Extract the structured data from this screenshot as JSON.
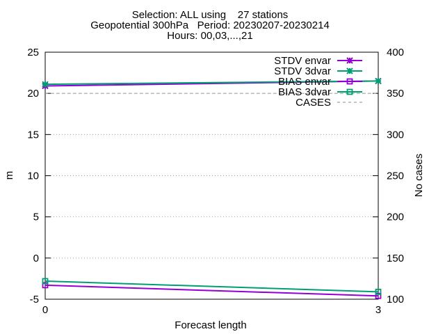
{
  "chart_data": {
    "type": "line",
    "title_lines": [
      "Selection: ALL using    27 stations",
      "Geopotential 300hPa   Period: 20230207-20230214",
      "Hours: 00,03,...,21"
    ],
    "xlabel": "Forecast length",
    "ylabel": "m",
    "y2label": "No cases",
    "xlim": [
      0,
      3
    ],
    "ylim": [
      -5,
      25
    ],
    "y2lim": [
      100,
      400
    ],
    "x_ticks": [
      "0",
      "3"
    ],
    "y_ticks": [
      "-5",
      "0",
      "5",
      "10",
      "15",
      "20",
      "25"
    ],
    "y2_ticks": [
      "100",
      "150",
      "200",
      "250",
      "300",
      "350",
      "400"
    ],
    "grid": "horizontal dotted",
    "legend_position": "top-right",
    "x": [
      0,
      3
    ],
    "series": [
      {
        "name": "STDV envar",
        "axis": "y",
        "values": [
          20.9,
          21.5
        ],
        "color": "#9400d3",
        "marker": "x",
        "dash": false
      },
      {
        "name": "STDV 3dvar",
        "axis": "y",
        "values": [
          21.1,
          21.5
        ],
        "color": "#009e73",
        "marker": "x",
        "dash": false
      },
      {
        "name": "BIAS envar",
        "axis": "y",
        "values": [
          -3.3,
          -4.6
        ],
        "color": "#9400d3",
        "marker": "square",
        "dash": false
      },
      {
        "name": "BIAS 3dvar",
        "axis": "y",
        "values": [
          -2.8,
          -4.1
        ],
        "color": "#009e73",
        "marker": "square",
        "dash": false
      },
      {
        "name": "CASES",
        "axis": "y2",
        "values": [
          350,
          350
        ],
        "color": "#a0a0a0",
        "marker": "none",
        "dash": true
      }
    ]
  }
}
